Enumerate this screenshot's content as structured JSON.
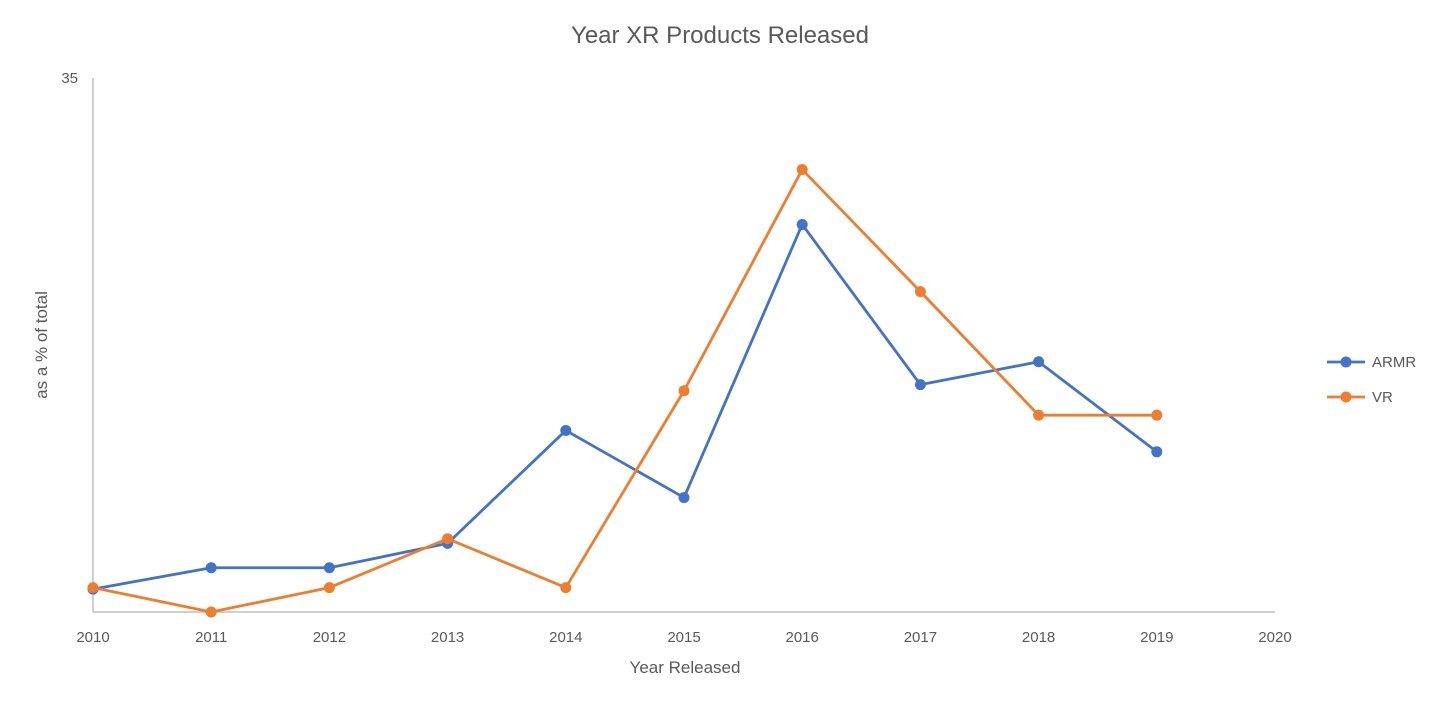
{
  "chart_data": {
    "type": "line",
    "title": "Year XR Products Released",
    "xlabel": "Year Released",
    "ylabel": "as a % of total",
    "xlim": [
      2010,
      2020
    ],
    "ylim": [
      0,
      35
    ],
    "x_ticks": [
      "2010",
      "2011",
      "2012",
      "2013",
      "2014",
      "2015",
      "2016",
      "2017",
      "2018",
      "2019",
      "2020"
    ],
    "y_ticks": [
      "35"
    ],
    "grid": false,
    "legend_position": "right",
    "x": [
      2010,
      2011,
      2012,
      2013,
      2014,
      2015,
      2016,
      2017,
      2018,
      2019
    ],
    "series": [
      {
        "name": "ARMR",
        "color": "#4472C4",
        "values": [
          1.5,
          2.9,
          2.9,
          4.5,
          11.9,
          7.5,
          25.4,
          14.9,
          16.4,
          10.5
        ]
      },
      {
        "name": "VR",
        "color": "#ED7D31",
        "values": [
          1.6,
          0,
          1.6,
          4.8,
          1.6,
          14.5,
          29.0,
          21.0,
          12.9,
          12.9
        ]
      }
    ]
  }
}
